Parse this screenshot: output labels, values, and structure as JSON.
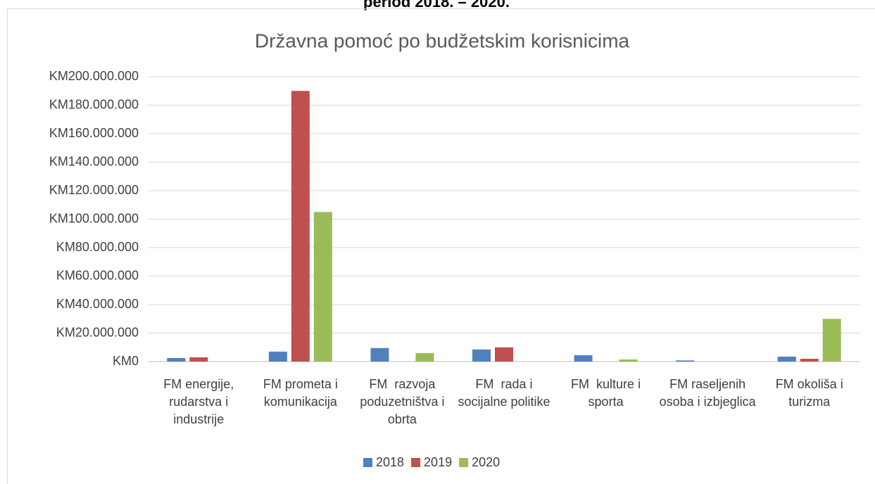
{
  "chart_data": {
    "type": "bar",
    "heading": "period 2018. – 2020.",
    "title": "Državna pomoć po budžetskim korisnicima",
    "categories": [
      "FM energije, rudarstva i industrije",
      "FM prometa i komunikacija",
      "FM  razvoja poduzetništva i obrta",
      "FM  rada i socijalne politike",
      "FM  kulture i sporta",
      "FM raseljenih osoba i izbjeglica",
      "FM okoliša i turizma"
    ],
    "series": [
      {
        "name": "2018",
        "color": "#4f81bd",
        "values": [
          2500000,
          7000000,
          9500000,
          8500000,
          4500000,
          800000,
          3500000
        ]
      },
      {
        "name": "2019",
        "color": "#c0504d",
        "values": [
          3000000,
          190000000,
          0,
          10000000,
          0,
          0,
          2000000
        ]
      },
      {
        "name": "2020",
        "color": "#9bbb59",
        "values": [
          0,
          105000000,
          6000000,
          0,
          1500000,
          0,
          30000000
        ]
      }
    ],
    "ylim": [
      0,
      200000000
    ],
    "yticks": [
      {
        "value": 0,
        "label": "KM0"
      },
      {
        "value": 20000000,
        "label": "KM20.000.000"
      },
      {
        "value": 40000000,
        "label": "KM40.000.000"
      },
      {
        "value": 60000000,
        "label": "KM60.000.000"
      },
      {
        "value": 80000000,
        "label": "KM80.000.000"
      },
      {
        "value": 100000000,
        "label": "KM100.000.000"
      },
      {
        "value": 120000000,
        "label": "KM120.000.000"
      },
      {
        "value": 140000000,
        "label": "KM140.000.000"
      },
      {
        "value": 160000000,
        "label": "KM160.000.000"
      },
      {
        "value": 180000000,
        "label": "KM180.000.000"
      },
      {
        "value": 200000000,
        "label": "KM200.000.000"
      }
    ],
    "grid": true,
    "legend": "bottom"
  }
}
